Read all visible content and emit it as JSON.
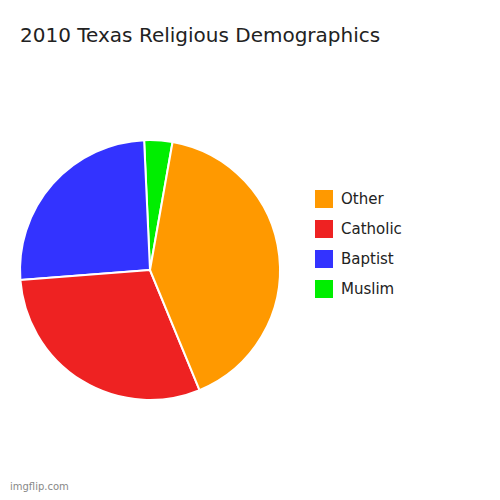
{
  "chart_data": {
    "type": "pie",
    "title": "2010 Texas Religious Demographics",
    "categories": [
      "Muslim",
      "Baptist",
      "Catholic",
      "Other"
    ],
    "values": [
      3.5,
      25.5,
      30.0,
      41.0
    ],
    "colors": [
      "#00ee00",
      "#3333ff",
      "#ee2222",
      "#ff9900"
    ],
    "legend": "right",
    "annotations": [
      "imgflip.com"
    ]
  }
}
